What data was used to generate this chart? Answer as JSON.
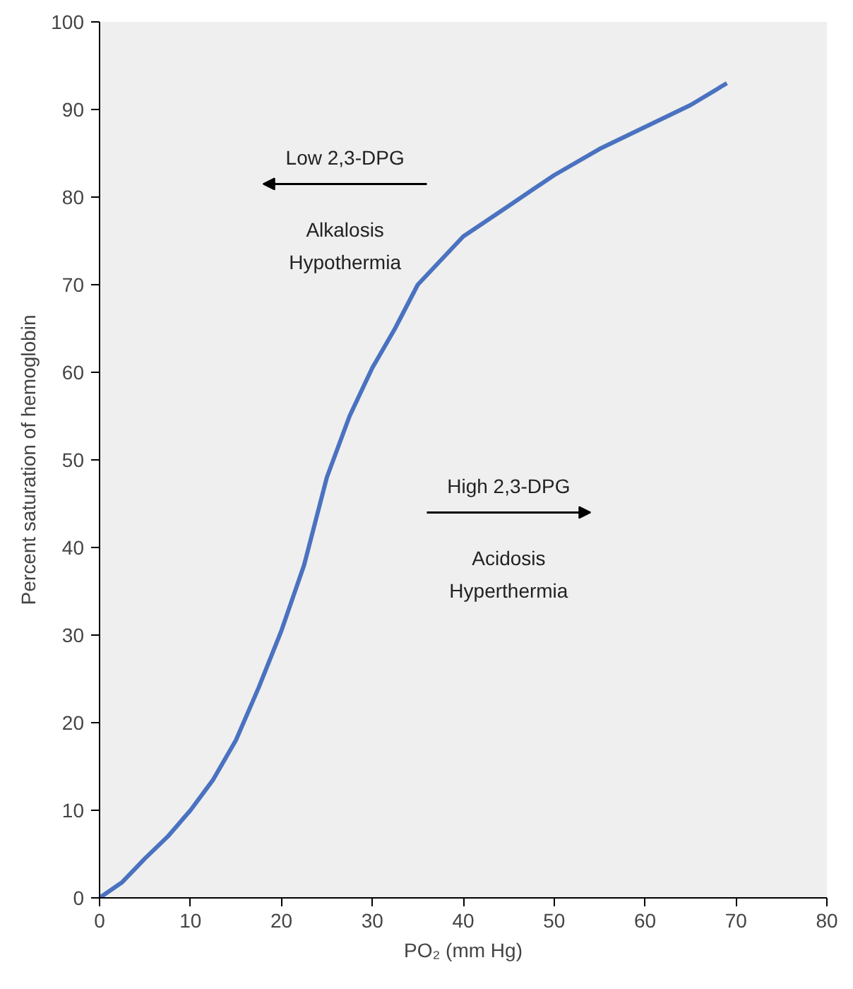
{
  "chart_data": {
    "type": "line",
    "xlabel": "PO₂ (mm Hg)",
    "ylabel": "Percent saturation of hemoglobin",
    "x": [
      0,
      2.5,
      5,
      7.5,
      10,
      12.5,
      15,
      17.5,
      20,
      22.5,
      25,
      27.5,
      30,
      32.5,
      35,
      40,
      45,
      50,
      55,
      60,
      65,
      69
    ],
    "series": [
      {
        "color": "#4a72c0",
        "values": [
          0,
          1.8,
          4.5,
          7,
          10,
          13.5,
          18,
          24,
          30.5,
          38,
          48,
          55,
          60.5,
          65,
          70,
          75.5,
          79,
          82.5,
          85.5,
          88,
          90.5,
          93
        ]
      }
    ],
    "xlim": [
      0,
      80
    ],
    "ylim": [
      0,
      100
    ],
    "xticks": [
      0,
      10,
      20,
      30,
      40,
      50,
      60,
      70,
      80
    ],
    "yticks": [
      0,
      10,
      20,
      30,
      40,
      50,
      60,
      70,
      80,
      90,
      100
    ],
    "marker": "none",
    "line_style": "solid",
    "annotations": [
      "Low 2,3-DPG",
      "Alkalosis",
      "Hypothermia",
      "High 2,3-DPG",
      "Acidosis",
      "Hyperthermia"
    ]
  }
}
